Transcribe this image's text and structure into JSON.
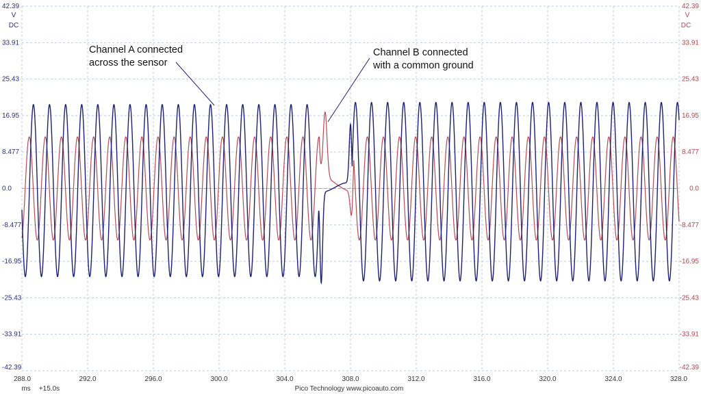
{
  "chart_data": {
    "type": "line",
    "x": {
      "range": [
        288.0,
        328.0
      ],
      "ticks": [
        "288.0",
        "292.0",
        "296.0",
        "300.0",
        "304.0",
        "308.0",
        "312.0",
        "316.0",
        "320.0",
        "324.0",
        "328.0"
      ],
      "unit": "ms",
      "offset": "+15.0s"
    },
    "y_left": {
      "range": [
        -42.39,
        42.39
      ],
      "ticks": [
        "42.39",
        "33.91",
        "25.43",
        "16.95",
        "8.477",
        "0.0",
        "-8.477",
        "-16.95",
        "-25.43",
        "-33.91",
        "-42.39"
      ],
      "unit": "V",
      "coupling": "DC",
      "color": "#2b2d7a"
    },
    "y_right": {
      "range": [
        -42.39,
        42.39
      ],
      "ticks": [
        "42.39",
        "33.91",
        "25.43",
        "16.95",
        "8.477",
        "0.0",
        "-8.477",
        "-16.95",
        "-25.43",
        "-33.91",
        "-42.39"
      ],
      "unit": "V",
      "coupling": "DC",
      "color": "#b0484e"
    },
    "grid": true,
    "series": [
      {
        "channel": "A",
        "color": "#1c1f72",
        "amplitude_peak_v": 19.5,
        "amplitude_trough_v": -20.5,
        "period_ms": 0.98,
        "first_peak_ms": 288.7,
        "gap_ms": [
          306.05,
          308.1
        ],
        "disturbance_min_v": -26.5,
        "disturbance_min_ms": 306.2,
        "disturbance_max_v": 25.5,
        "disturbance_max_ms": 308.05,
        "after_gap_peak_v": 20.0,
        "after_gap_trough_v": -21.5
      },
      {
        "channel": "B",
        "color": "#b44a52",
        "amplitude_v": 12.0,
        "period_ms": 0.98,
        "first_peak_ms": 288.5,
        "gap_ms": [
          306.1,
          308.2
        ],
        "disturbance_max_v": 15.6,
        "disturbance_max_ms": 306.45,
        "disturbance_min_v": -10.0,
        "disturbance_min_ms": 308.1
      }
    ],
    "annotations": [
      {
        "id": "a",
        "lines": [
          "Channel A connected",
          "across the sensor"
        ]
      },
      {
        "id": "b",
        "lines": [
          "Channel B connected",
          "with a common ground"
        ]
      }
    ]
  },
  "footer": {
    "brand": "Pico Technology   www.picoauto.com"
  }
}
